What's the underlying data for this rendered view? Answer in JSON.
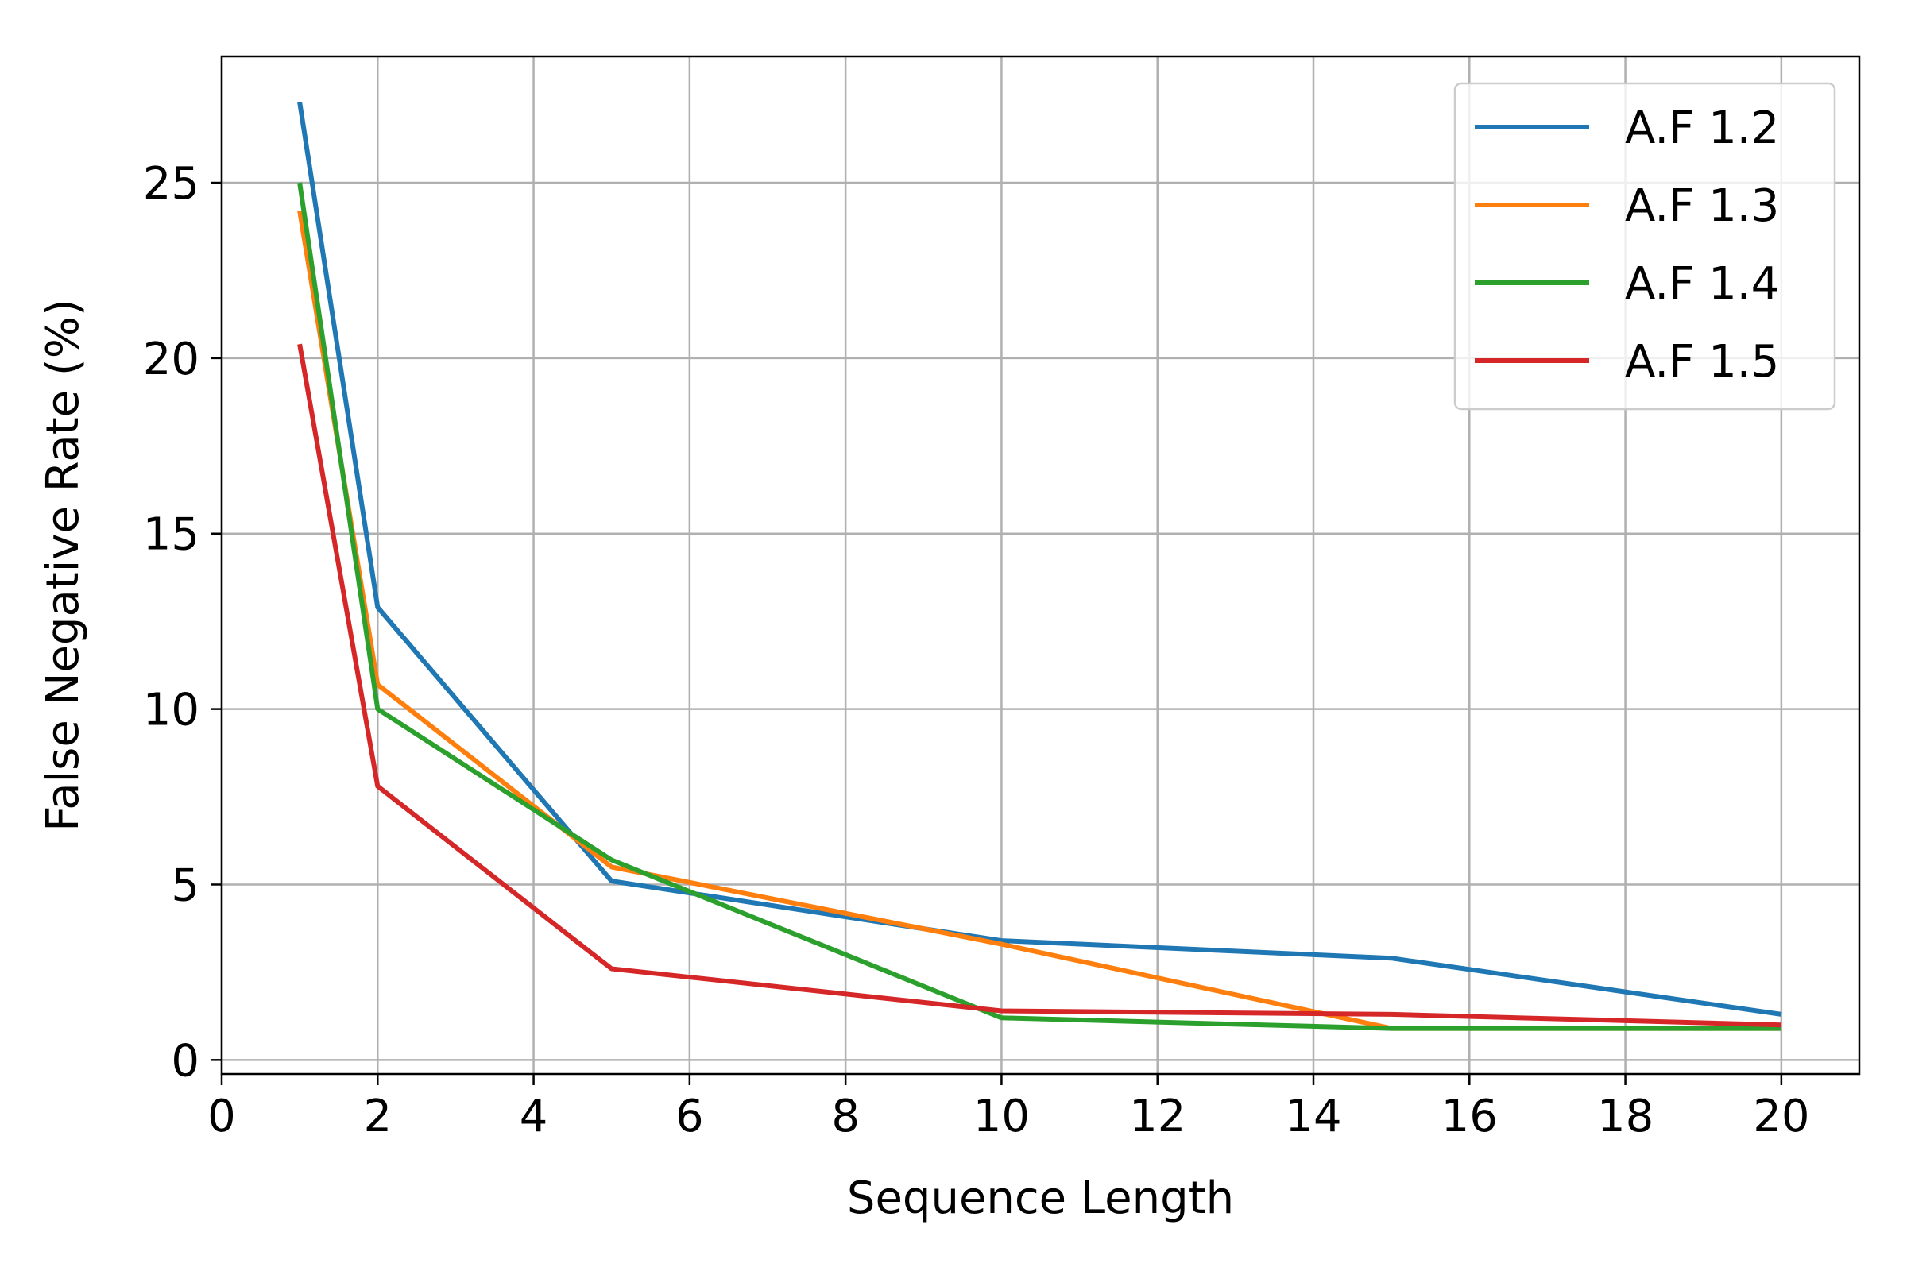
{
  "chart_data": {
    "type": "line",
    "title": "",
    "xlabel": "Sequence Length",
    "ylabel": "False Negative Rate (%)",
    "xlim": [
      0,
      21
    ],
    "ylim": [
      -0.4,
      28.6
    ],
    "xticks": [
      0,
      2,
      4,
      6,
      8,
      10,
      12,
      14,
      16,
      18,
      20
    ],
    "yticks": [
      0,
      5,
      10,
      15,
      20,
      25
    ],
    "grid": true,
    "legend_position": "top-right",
    "x": [
      1,
      2,
      5,
      10,
      15,
      20
    ],
    "series": [
      {
        "name": "A.F 1.2",
        "color": "#1f77b4",
        "values": [
          27.3,
          12.9,
          5.1,
          3.4,
          2.9,
          1.3
        ]
      },
      {
        "name": "A.F 1.3",
        "color": "#ff7f0e",
        "values": [
          24.2,
          10.7,
          5.5,
          3.3,
          0.9,
          0.9
        ]
      },
      {
        "name": "A.F 1.4",
        "color": "#2ca02c",
        "values": [
          25.0,
          10.0,
          5.7,
          1.2,
          0.9,
          0.9
        ]
      },
      {
        "name": "A.F 1.5",
        "color": "#d62728",
        "values": [
          20.4,
          7.8,
          2.6,
          1.4,
          1.3,
          1.0
        ]
      }
    ]
  }
}
